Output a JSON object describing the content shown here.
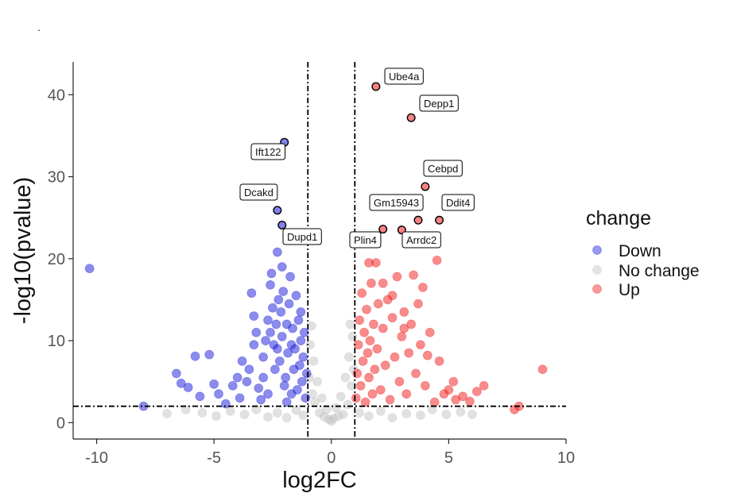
{
  "page": {
    "stray_mark": "."
  },
  "chart_data": {
    "type": "scatter",
    "title": "",
    "xlabel": "log2FC",
    "ylabel": "-log10(pvalue)",
    "xlim": [
      -11,
      10
    ],
    "ylim": [
      -2,
      44
    ],
    "xticks": [
      -10,
      -5,
      0,
      5,
      10
    ],
    "yticks": [
      0,
      10,
      20,
      30,
      40
    ],
    "xtick_labels": [
      "-10",
      "-5",
      "0",
      "5",
      "10"
    ],
    "ytick_labels": [
      "0",
      "10",
      "20",
      "30",
      "40"
    ],
    "grid": false,
    "thresholds": {
      "vertical": [
        -1,
        1
      ],
      "horizontal": [
        2
      ]
    },
    "legend": {
      "title": "change",
      "position": "right",
      "entries": [
        {
          "name": "Down",
          "color": "#1a1adc"
        },
        {
          "name": "No change",
          "color": "#c4c4c4"
        },
        {
          "name": "Up",
          "color": "#f21a1a"
        }
      ]
    },
    "series": [
      {
        "name": "Down",
        "color": "#1a1adc",
        "points": [
          [
            -10.3,
            18.8
          ],
          [
            -8.0,
            2.0
          ],
          [
            -6.6,
            6.0
          ],
          [
            -6.4,
            4.8
          ],
          [
            -6.1,
            4.3
          ],
          [
            -5.8,
            8.1
          ],
          [
            -5.6,
            3.2
          ],
          [
            -5.2,
            8.3
          ],
          [
            -5.0,
            4.7
          ],
          [
            -4.8,
            3.5
          ],
          [
            -4.5,
            2.3
          ],
          [
            -4.2,
            4.5
          ],
          [
            -3.9,
            3.0
          ],
          [
            -3.6,
            5.0
          ],
          [
            -3.4,
            15.8
          ],
          [
            -3.3,
            13.0
          ],
          [
            -3.2,
            11.0
          ],
          [
            -3.1,
            4.2
          ],
          [
            -3.0,
            2.8
          ],
          [
            -2.9,
            8.0
          ],
          [
            -2.8,
            10.0
          ],
          [
            -2.7,
            12.5
          ],
          [
            -2.6,
            16.8
          ],
          [
            -2.55,
            18.2
          ],
          [
            -2.5,
            14.0
          ],
          [
            -2.45,
            9.5
          ],
          [
            -2.4,
            6.5
          ],
          [
            -2.35,
            12.0
          ],
          [
            -2.3,
            20.8
          ],
          [
            -2.25,
            15.0
          ],
          [
            -2.2,
            7.5
          ],
          [
            -2.15,
            13.5
          ],
          [
            -2.1,
            10.5
          ],
          [
            -2.05,
            16.0
          ],
          [
            -1.95,
            5.5
          ],
          [
            -1.9,
            12.0
          ],
          [
            -1.85,
            8.5
          ],
          [
            -1.8,
            14.5
          ],
          [
            -1.75,
            17.8
          ],
          [
            -1.7,
            3.5
          ],
          [
            -1.65,
            11.5
          ],
          [
            -1.6,
            6.5
          ],
          [
            -1.55,
            9.0
          ],
          [
            -1.5,
            15.5
          ],
          [
            -1.45,
            4.0
          ],
          [
            -1.4,
            12.5
          ],
          [
            -1.35,
            7.0
          ],
          [
            -1.3,
            10.0
          ],
          [
            -1.25,
            5.0
          ],
          [
            -1.2,
            8.0
          ],
          [
            -1.15,
            11.0
          ],
          [
            -1.1,
            3.0
          ],
          [
            -1.05,
            6.0
          ],
          [
            -2.6,
            11.0
          ],
          [
            -2.3,
            9.0
          ],
          [
            -2.0,
            4.5
          ],
          [
            -3.5,
            6.5
          ],
          [
            -4.0,
            5.5
          ],
          [
            -3.8,
            7.5
          ],
          [
            -3.3,
            9.5
          ],
          [
            -2.9,
            5.5
          ],
          [
            -2.7,
            3.5
          ],
          [
            -1.9,
            2.5
          ],
          [
            -1.7,
            9.5
          ],
          [
            -1.3,
            13.5
          ],
          [
            -2.1,
            19.0
          ]
        ]
      },
      {
        "name": "No change",
        "color": "#c4c4c4",
        "points": [
          [
            -7.0,
            1.1
          ],
          [
            -6.2,
            1.6
          ],
          [
            -5.5,
            1.2
          ],
          [
            -4.9,
            0.8
          ],
          [
            -4.3,
            1.4
          ],
          [
            -3.7,
            1.0
          ],
          [
            -3.2,
            1.6
          ],
          [
            -2.7,
            0.7
          ],
          [
            -2.3,
            1.2
          ],
          [
            -1.9,
            0.6
          ],
          [
            -1.5,
            1.5
          ],
          [
            -1.2,
            0.9
          ],
          [
            -0.95,
            5.5
          ],
          [
            -0.9,
            9.5
          ],
          [
            -0.85,
            11.8
          ],
          [
            -0.8,
            3.5
          ],
          [
            -0.75,
            7.5
          ],
          [
            -0.7,
            2.5
          ],
          [
            -0.6,
            5.0
          ],
          [
            -0.5,
            1.2
          ],
          [
            -0.4,
            3.0
          ],
          [
            -0.3,
            0.7
          ],
          [
            -0.2,
            1.6
          ],
          [
            -0.1,
            0.4
          ],
          [
            0.0,
            0.2
          ],
          [
            0.1,
            0.5
          ],
          [
            0.2,
            1.8
          ],
          [
            0.3,
            0.8
          ],
          [
            0.4,
            3.2
          ],
          [
            0.5,
            1.0
          ],
          [
            0.6,
            5.5
          ],
          [
            0.7,
            2.2
          ],
          [
            0.75,
            8.0
          ],
          [
            0.8,
            12.0
          ],
          [
            0.85,
            4.5
          ],
          [
            0.9,
            10.5
          ],
          [
            0.95,
            6.5
          ],
          [
            1.2,
            1.2
          ],
          [
            1.6,
            0.8
          ],
          [
            2.1,
            1.4
          ],
          [
            2.6,
            0.6
          ],
          [
            3.2,
            1.1
          ],
          [
            3.8,
            0.9
          ],
          [
            4.3,
            1.6
          ],
          [
            4.9,
            1.0
          ],
          [
            5.5,
            1.3
          ],
          [
            6.0,
            1.0
          ]
        ]
      },
      {
        "name": "Up",
        "color": "#f21a1a",
        "points": [
          [
            1.05,
            3.0
          ],
          [
            1.1,
            6.0
          ],
          [
            1.15,
            9.5
          ],
          [
            1.2,
            12.5
          ],
          [
            1.25,
            4.5
          ],
          [
            1.3,
            15.8
          ],
          [
            1.35,
            7.5
          ],
          [
            1.4,
            11.0
          ],
          [
            1.45,
            2.5
          ],
          [
            1.5,
            13.8
          ],
          [
            1.55,
            8.5
          ],
          [
            1.6,
            5.5
          ],
          [
            1.65,
            10.0
          ],
          [
            1.7,
            17.0
          ],
          [
            1.75,
            3.5
          ],
          [
            1.8,
            12.0
          ],
          [
            1.85,
            6.5
          ],
          [
            1.9,
            19.5
          ],
          [
            1.95,
            9.0
          ],
          [
            2.0,
            14.5
          ],
          [
            2.1,
            4.0
          ],
          [
            2.2,
            11.5
          ],
          [
            2.3,
            7.0
          ],
          [
            2.4,
            15.0
          ],
          [
            2.5,
            2.8
          ],
          [
            2.6,
            12.8
          ],
          [
            2.7,
            8.0
          ],
          [
            2.8,
            17.8
          ],
          [
            2.9,
            5.0
          ],
          [
            3.0,
            10.5
          ],
          [
            3.1,
            13.5
          ],
          [
            3.2,
            3.5
          ],
          [
            3.3,
            8.5
          ],
          [
            3.4,
            12.0
          ],
          [
            3.5,
            18.0
          ],
          [
            3.6,
            6.0
          ],
          [
            3.7,
            14.5
          ],
          [
            3.8,
            9.5
          ],
          [
            3.9,
            16.5
          ],
          [
            4.0,
            4.5
          ],
          [
            4.2,
            11.0
          ],
          [
            4.4,
            2.5
          ],
          [
            4.5,
            19.8
          ],
          [
            4.6,
            7.5
          ],
          [
            4.8,
            3.5
          ],
          [
            5.0,
            4.0
          ],
          [
            5.3,
            2.8
          ],
          [
            5.6,
            3.2
          ],
          [
            5.9,
            2.6
          ],
          [
            6.2,
            3.8
          ],
          [
            6.5,
            4.5
          ],
          [
            7.8,
            1.6
          ],
          [
            8.0,
            2.0
          ],
          [
            9.0,
            6.5
          ],
          [
            2.2,
            17.0
          ],
          [
            2.6,
            15.5
          ],
          [
            1.6,
            19.5
          ],
          [
            3.1,
            11.5
          ],
          [
            4.1,
            8.2
          ],
          [
            5.2,
            5.0
          ]
        ]
      }
    ],
    "labeled_points": [
      {
        "label": "Ube4a",
        "x": 1.9,
        "y": 41.0,
        "group": "Up"
      },
      {
        "label": "Depp1",
        "x": 3.4,
        "y": 37.2,
        "group": "Up"
      },
      {
        "label": "Ift122",
        "x": -2.0,
        "y": 34.2,
        "group": "Down"
      },
      {
        "label": "Cebpd",
        "x": 4.0,
        "y": 28.8,
        "group": "Up"
      },
      {
        "label": "Dcakd",
        "x": -2.3,
        "y": 25.9,
        "group": "Down"
      },
      {
        "label": "Gm15943",
        "x": 3.7,
        "y": 24.7,
        "group": "Up"
      },
      {
        "label": "Ddit4",
        "x": 4.6,
        "y": 24.7,
        "group": "Up"
      },
      {
        "label": "Dupd1",
        "x": -2.1,
        "y": 24.1,
        "group": "Down"
      },
      {
        "label": "Plin4",
        "x": 2.2,
        "y": 23.6,
        "group": "Up"
      },
      {
        "label": "Arrdc2",
        "x": 3.0,
        "y": 23.5,
        "group": "Up"
      }
    ]
  }
}
